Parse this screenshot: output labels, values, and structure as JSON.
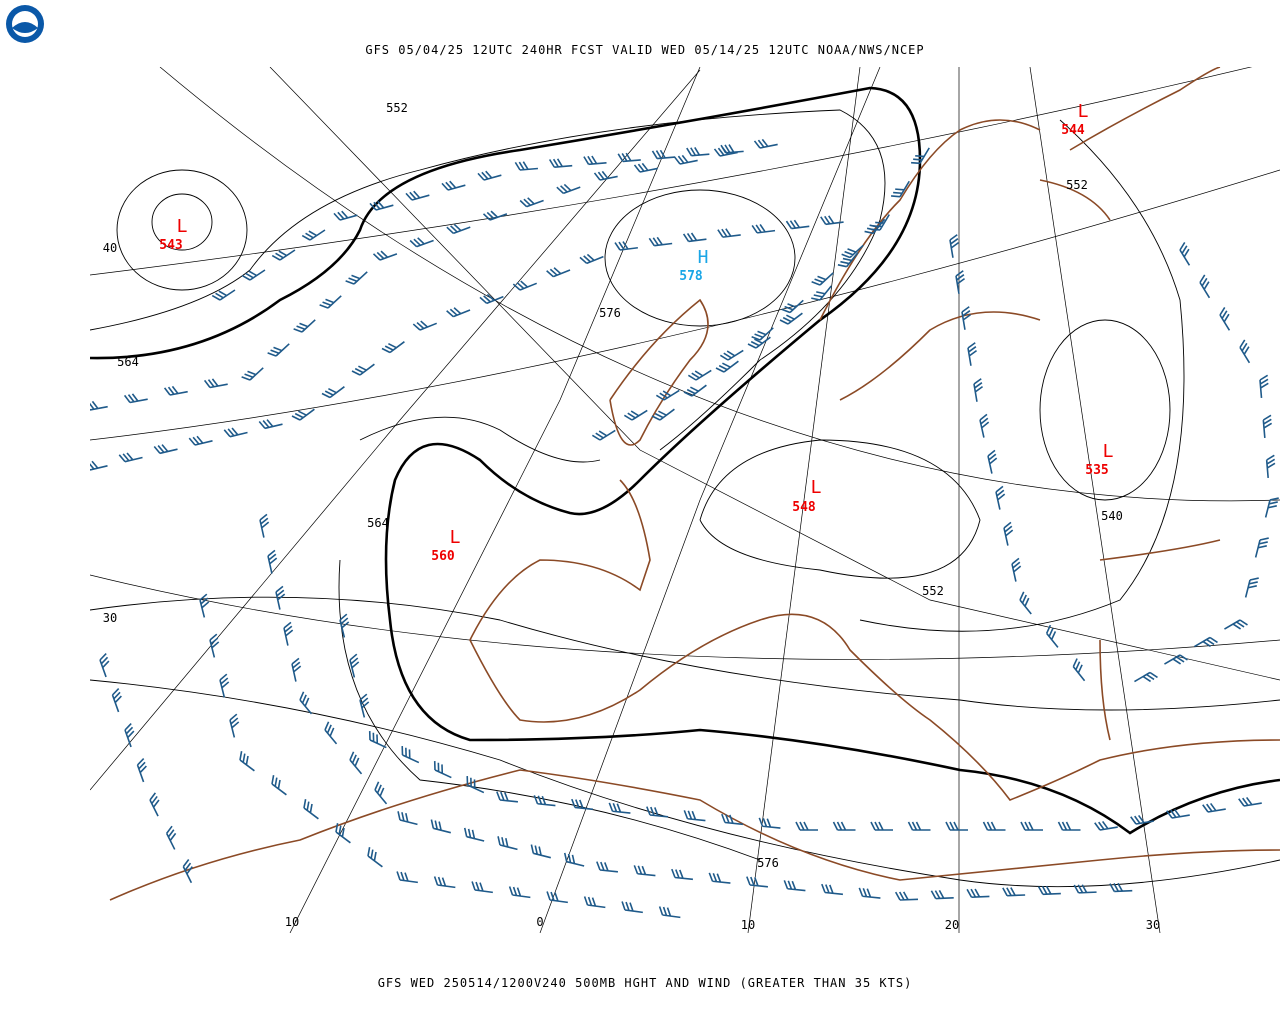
{
  "header": {
    "title": "GFS 05/04/25 12UTC 240HR FCST VALID WED 05/14/25 12UTC NOAA/NWS/NCEP"
  },
  "footer": {
    "caption": "GFS WED 250514/1200V240 500MB HGHT AND WIND (GREATER THAN 35 KTS)"
  },
  "contour_labels": [
    552,
    552,
    576,
    564,
    564,
    552,
    540,
    576
  ],
  "systems": [
    {
      "letter": "L",
      "value": 543
    },
    {
      "letter": "H",
      "value": 578
    },
    {
      "letter": "L",
      "value": 560
    },
    {
      "letter": "L",
      "value": 548
    },
    {
      "letter": "L",
      "value": 544
    },
    {
      "letter": "L",
      "value": 535
    }
  ],
  "latitude_labels": [
    40,
    30
  ],
  "longitude_labels": [
    10,
    0,
    10,
    20,
    30
  ]
}
